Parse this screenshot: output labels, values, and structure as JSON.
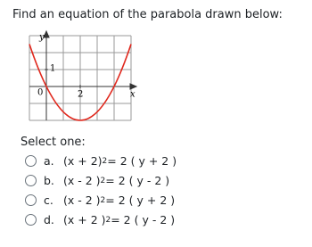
{
  "question": "Find an equation of the parabola drawn below:",
  "graph": {
    "y_label": "y",
    "x_label": "x",
    "origin_label": "0",
    "y_tick_label": "1",
    "x_tick_label": "2"
  },
  "prompt": "Select one:",
  "options": [
    {
      "letter": "a.",
      "lhs": "(x + 2)",
      "exp": "2",
      "rhs": "= 2 ( y + 2 )"
    },
    {
      "letter": "b.",
      "lhs": "(x - 2 )",
      "exp": "2",
      "rhs": "= 2 ( y - 2 )"
    },
    {
      "letter": "c.",
      "lhs": "(x - 2 )",
      "exp": "2",
      "rhs": "= 2 ( y + 2 )"
    },
    {
      "letter": "d.",
      "lhs": "(x + 2 )",
      "exp": "2",
      "rhs": "= 2 ( y - 2 )"
    }
  ]
}
